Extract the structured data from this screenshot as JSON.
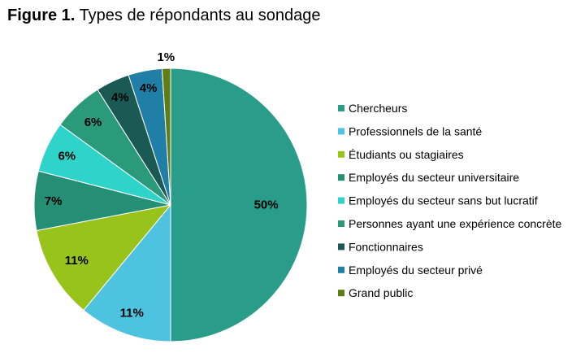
{
  "title": {
    "prefix": "Figure 1.",
    "text": "Types de répondants au sondage"
  },
  "chart_data": {
    "type": "pie",
    "title": "Types de répondants au sondage",
    "legend_position": "right",
    "slices": [
      {
        "label": "Chercheurs",
        "value": 50,
        "display": "50%",
        "color": "#2a9d8a"
      },
      {
        "label": "Professionnels de la santé",
        "value": 11,
        "display": "11%",
        "color": "#4ec3e0"
      },
      {
        "label": "Étudiants ou stagiaires",
        "value": 11,
        "display": "11%",
        "color": "#97c31a"
      },
      {
        "label": "Employés du secteur universitaire",
        "value": 7,
        "display": "7%",
        "color": "#248f74"
      },
      {
        "label": "Employés du secteur sans but lucratif",
        "value": 6,
        "display": "6%",
        "color": "#2ed4c9"
      },
      {
        "label": "Personnes ayant une expérience concrète",
        "value": 6,
        "display": "6%",
        "color": "#2a9a7a"
      },
      {
        "label": "Fonctionnaires",
        "value": 4,
        "display": "4%",
        "color": "#1b5a54"
      },
      {
        "label": "Employés du secteur privé",
        "value": 4,
        "display": "4%",
        "color": "#1f7fa6"
      },
      {
        "label": "Grand public",
        "value": 1,
        "display": "1%",
        "color": "#5f7d12"
      }
    ]
  }
}
